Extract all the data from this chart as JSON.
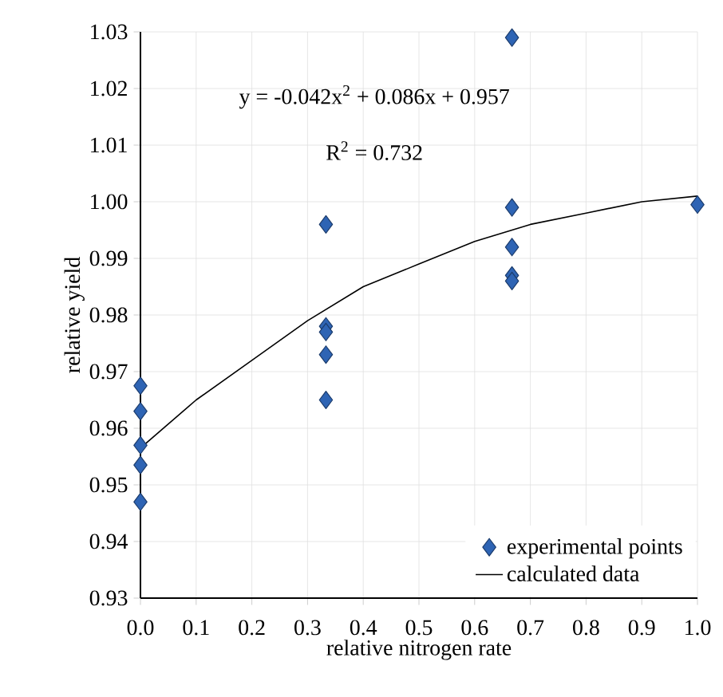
{
  "chart_data": {
    "type": "scatter",
    "xlabel": "relative nitrogen rate",
    "ylabel": "relative yield",
    "annotations": [
      "y = -0.042x$^{2}$ + 0.086x + 0.957",
      "R$^{2}$ = 0.732"
    ],
    "xlim": [
      0,
      1
    ],
    "ylim": [
      0.93,
      1.03
    ],
    "xticks": [
      {
        "value": 0,
        "label": "0.0"
      },
      0.1,
      0.2,
      0.3,
      0.4,
      0.5,
      0.6,
      0.7,
      0.8,
      0.9,
      {
        "value": 1,
        "label": "1.0"
      }
    ],
    "yticks": [
      0.93,
      0.94,
      0.95,
      0.96,
      0.97,
      0.98,
      0.99,
      {
        "value": 1,
        "label": "1.00"
      },
      1.01,
      1.02,
      1.03
    ],
    "grid": true,
    "legend": "bottom right",
    "series": [
      {
        "name": "experimental points",
        "marker": "diamond",
        "color": "#2e64b4",
        "x": [
          0,
          0,
          0,
          0,
          0,
          0.333,
          0.333,
          0.333,
          0.333,
          0.333,
          0.667,
          0.667,
          0.667,
          0.667,
          0.667,
          1.0
        ],
        "values": [
          0.9675,
          0.963,
          0.957,
          0.9535,
          0.947,
          0.996,
          0.978,
          0.977,
          0.973,
          0.965,
          1.029,
          0.999,
          0.992,
          0.987,
          0.986,
          0.9995
        ]
      },
      {
        "name": "calculated data",
        "type": "line",
        "marker": "none",
        "line_style": "solid",
        "color": "#000000",
        "x": [
          0,
          0.1,
          0.2,
          0.3,
          0.4,
          0.5,
          0.6,
          0.7,
          0.8,
          0.9,
          1.0
        ],
        "values": [
          0.9565,
          0.965,
          0.972,
          0.979,
          0.985,
          0.989,
          0.993,
          0.996,
          0.998,
          1.0,
          1.001
        ]
      }
    ]
  }
}
